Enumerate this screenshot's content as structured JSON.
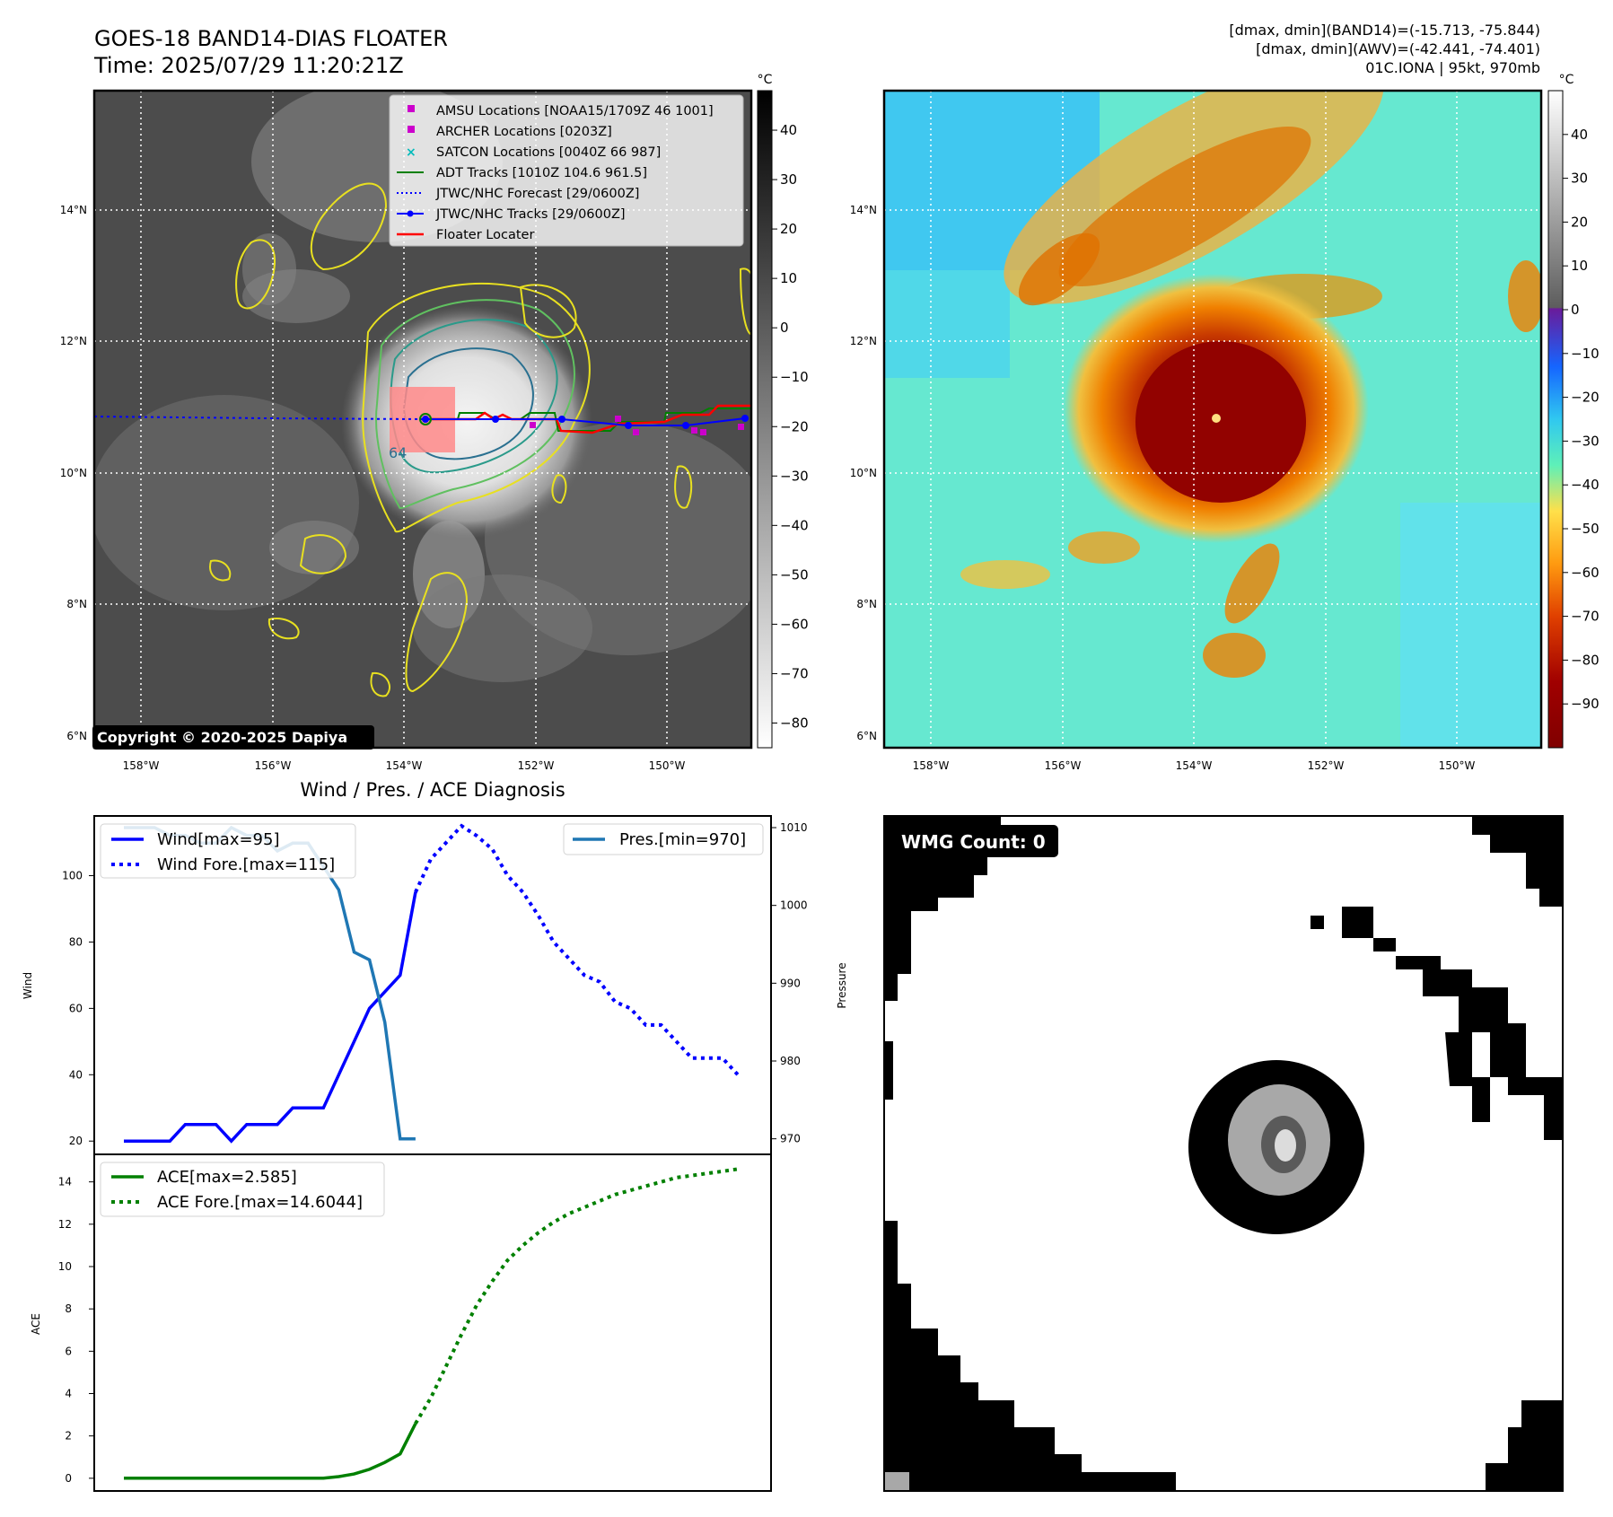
{
  "header": {
    "title_line1": "GOES-18 BAND14-DIAS FLOATER",
    "title_line2": "Time: 2025/07/29 11:20:21Z",
    "right_line1": "[dmax, dmin](BAND14)=(-15.713, -75.844)",
    "right_line2": "[dmax, dmin](AWV)=(-42.441, -74.401)",
    "right_line3": "01C.IONA | 95kt, 970mb"
  },
  "map_axes": {
    "lat_ticks": [
      "14°N",
      "12°N",
      "10°N",
      "8°N",
      "6°N"
    ],
    "lon_ticks": [
      "158°W",
      "156°W",
      "154°W",
      "152°W",
      "150°W"
    ]
  },
  "left_colorbar": {
    "unit": "°C",
    "ticks": [
      "40",
      "30",
      "20",
      "10",
      "0",
      "−10",
      "−20",
      "−30",
      "−40",
      "−50",
      "−60",
      "−70",
      "−80"
    ]
  },
  "right_colorbar": {
    "unit": "°C",
    "ticks": [
      "40",
      "30",
      "20",
      "10",
      "0",
      "−10",
      "−20",
      "−30",
      "−40",
      "−50",
      "−60",
      "−70",
      "−80",
      "−90"
    ]
  },
  "legend": {
    "amsu": "AMSU Locations [NOAA15/1709Z 46 1001]",
    "archer": "ARCHER Locations [0203Z]",
    "satcon": "SATCON Locations [0040Z 66 987]",
    "adt": "ADT Tracks [1010Z 104.6 961.5]",
    "jtwc_forecast": "JTWC/NHC Forecast [29/0600Z]",
    "jtwc_tracks": "JTWC/NHC Tracks [29/0600Z]",
    "floater": "Floater Locater"
  },
  "copyright": "Copyright © 2020-2025 Dapiya",
  "storm_label": "64",
  "wmg_label": "WMG Count: 0",
  "colors": {
    "wind": "#0000ff",
    "pressure": "#1f77b4",
    "ace": "#008000",
    "floater": "#ff0000",
    "adt": "#008000",
    "amsu": "#cc00cc",
    "satcon": "#00bbbb"
  },
  "chart_data": [
    {
      "type": "line",
      "title": "Wind / Pres. / ACE Diagnosis",
      "ylabel": "Wind",
      "y2label": "Pressure",
      "ylim": [
        16,
        118
      ],
      "y2lim": [
        968,
        1011.5
      ],
      "yticks": [
        20,
        40,
        60,
        80,
        100
      ],
      "y2ticks": [
        970,
        980,
        990,
        1000,
        1010
      ],
      "series": [
        {
          "name": "Wind[max=95]",
          "style": "solid",
          "axis": "left",
          "x": [
            0,
            1,
            2,
            3,
            4,
            5,
            6,
            7,
            8,
            9,
            10,
            11,
            12,
            13,
            14,
            15,
            16,
            17,
            18,
            19
          ],
          "values": [
            20,
            20,
            20,
            20,
            25,
            25,
            25,
            20,
            25,
            25,
            25,
            30,
            30,
            30,
            40,
            50,
            60,
            65,
            70,
            95
          ]
        },
        {
          "name": "Wind Fore.[max=115]",
          "style": "dotted",
          "axis": "left",
          "x": [
            19,
            20,
            21,
            22,
            23,
            24,
            25,
            26,
            27,
            28,
            29,
            30,
            31,
            32,
            33,
            34,
            35,
            36,
            37,
            38,
            39,
            40
          ],
          "values": [
            95,
            105,
            110,
            115,
            112,
            108,
            100,
            95,
            88,
            80,
            75,
            70,
            68,
            62,
            60,
            55,
            55,
            50,
            45,
            45,
            45,
            40
          ]
        },
        {
          "name": "Pres.[min=970]",
          "style": "solid",
          "axis": "right",
          "x": [
            0,
            1,
            2,
            3,
            4,
            5,
            6,
            7,
            8,
            9,
            10,
            11,
            12,
            13,
            14,
            15,
            16,
            17,
            18,
            19
          ],
          "values": [
            1010,
            1010,
            1010,
            1009,
            1009,
            1008,
            1008,
            1010,
            1009,
            1009,
            1007,
            1008,
            1008,
            1005,
            1002,
            994,
            993,
            985,
            970,
            970
          ]
        }
      ]
    },
    {
      "type": "line",
      "ylabel": "ACE",
      "ylim": [
        -0.6,
        15.3
      ],
      "yticks": [
        0,
        2,
        4,
        6,
        8,
        10,
        12,
        14
      ],
      "series": [
        {
          "name": "ACE[max=2.585]",
          "style": "solid",
          "x": [
            0,
            1,
            2,
            3,
            4,
            5,
            6,
            7,
            8,
            9,
            10,
            11,
            12,
            13,
            14,
            15,
            16,
            17,
            18,
            19
          ],
          "values": [
            0,
            0,
            0,
            0,
            0,
            0,
            0,
            0,
            0,
            0,
            0,
            0,
            0,
            0,
            0.08,
            0.2,
            0.42,
            0.75,
            1.15,
            2.585
          ]
        },
        {
          "name": "ACE Fore.[max=14.6044]",
          "style": "dotted",
          "x": [
            19,
            20,
            21,
            22,
            23,
            24,
            25,
            26,
            27,
            28,
            29,
            30,
            31,
            32,
            33,
            34,
            35,
            36,
            37,
            38,
            39,
            40
          ],
          "values": [
            2.585,
            3.8,
            5.3,
            6.8,
            8.2,
            9.3,
            10.3,
            11.0,
            11.6,
            12.1,
            12.5,
            12.8,
            13.1,
            13.4,
            13.6,
            13.8,
            14.0,
            14.2,
            14.3,
            14.4,
            14.5,
            14.6044
          ]
        }
      ]
    }
  ]
}
